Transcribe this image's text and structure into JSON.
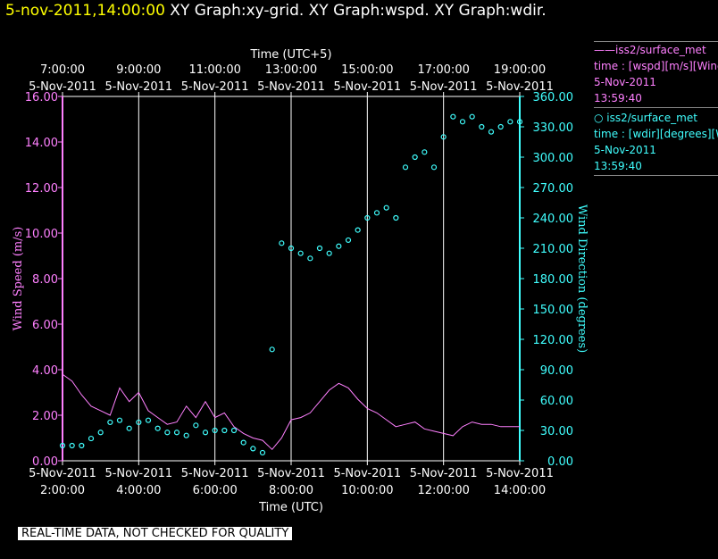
{
  "header": {
    "timestamp": "5-nov-2011,14:00:00",
    "graphs": "XY Graph:xy-grid.  XY Graph:wspd.  XY Graph:wdir."
  },
  "legend": [
    {
      "name": "——iss2/surface_met",
      "desc": "time : [wspd][m/s][Wind",
      "date": "5-Nov-2011",
      "time": "13:59:40",
      "color": "#ff80ff"
    },
    {
      "name": "○  iss2/surface_met",
      "desc": "time : [wdir][degrees][Wi",
      "date": "5-Nov-2011",
      "time": "13:59:40",
      "color": "#40ffff"
    }
  ],
  "footer": {
    "text": "REAL-TIME DATA, NOT CHECKED FOR QUALITY"
  },
  "chart_data": {
    "type": "line",
    "grid": "vertical lines only",
    "top_axis": {
      "title": "Time (UTC+5)",
      "ticks": [
        {
          "time": "7:00:00",
          "date": "5-Nov-2011"
        },
        {
          "time": "9:00:00",
          "date": "5-Nov-2011"
        },
        {
          "time": "11:00:00",
          "date": "5-Nov-2011"
        },
        {
          "time": "13:00:00",
          "date": "5-Nov-2011"
        },
        {
          "time": "15:00:00",
          "date": "5-Nov-2011"
        },
        {
          "time": "17:00:00",
          "date": "5-Nov-2011"
        },
        {
          "time": "19:00:00",
          "date": "5-Nov-2011"
        }
      ]
    },
    "bottom_axis": {
      "title": "Time (UTC)",
      "ticks": [
        {
          "time": "2:00:00",
          "date": "5-Nov-2011"
        },
        {
          "time": "4:00:00",
          "date": "5-Nov-2011"
        },
        {
          "time": "6:00:00",
          "date": "5-Nov-2011"
        },
        {
          "time": "8:00:00",
          "date": "5-Nov-2011"
        },
        {
          "time": "10:00:00",
          "date": "5-Nov-2011"
        },
        {
          "time": "12:00:00",
          "date": "5-Nov-2011"
        },
        {
          "time": "14:00:00",
          "date": "5-Nov-2011"
        }
      ],
      "x_range_hours_utc": [
        2,
        14
      ]
    },
    "left_axis": {
      "title": "Wind Speed (m/s)",
      "color": "#ff80ff",
      "ylim": [
        0,
        16
      ],
      "ticks": [
        "0.00",
        "2.00",
        "4.00",
        "6.00",
        "8.00",
        "10.00",
        "12.00",
        "14.00",
        "16.00"
      ]
    },
    "right_axis": {
      "title": "Wind Direction (degrees)",
      "color": "#40ffff",
      "ylim": [
        0,
        360
      ],
      "ticks": [
        "0.00",
        "30.00",
        "60.00",
        "90.00",
        "120.00",
        "150.00",
        "180.00",
        "210.00",
        "240.00",
        "270.00",
        "300.00",
        "330.00",
        "360.00"
      ]
    },
    "series": [
      {
        "name": "iss2/surface_met wspd",
        "axis": "left",
        "style": "line",
        "color": "#ff80ff",
        "x": [
          2.0,
          2.25,
          2.5,
          2.75,
          3.0,
          3.25,
          3.5,
          3.75,
          4.0,
          4.25,
          4.5,
          4.75,
          5.0,
          5.25,
          5.5,
          5.75,
          6.0,
          6.25,
          6.5,
          6.75,
          7.0,
          7.25,
          7.5,
          7.75,
          8.0,
          8.25,
          8.5,
          8.75,
          9.0,
          9.25,
          9.5,
          9.75,
          10.0,
          10.25,
          10.5,
          10.75,
          11.0,
          11.25,
          11.5,
          11.75,
          12.0,
          12.25,
          12.5,
          12.75,
          13.0,
          13.25,
          13.5,
          13.75,
          14.0
        ],
        "y": [
          3.8,
          3.5,
          2.9,
          2.4,
          2.2,
          2.0,
          3.2,
          2.6,
          3.0,
          2.2,
          1.9,
          1.6,
          1.7,
          2.4,
          1.9,
          2.6,
          1.9,
          2.1,
          1.5,
          1.2,
          1.0,
          0.9,
          0.5,
          1.0,
          1.8,
          1.9,
          2.1,
          2.6,
          3.1,
          3.4,
          3.2,
          2.7,
          2.3,
          2.1,
          1.8,
          1.5,
          1.6,
          1.7,
          1.4,
          1.3,
          1.2,
          1.1,
          1.5,
          1.7,
          1.6,
          1.6,
          1.5,
          1.5,
          1.5
        ]
      },
      {
        "name": "iss2/surface_met wdir",
        "axis": "right",
        "style": "circles",
        "color": "#40ffff",
        "x": [
          2.0,
          2.25,
          2.5,
          2.75,
          3.0,
          3.25,
          3.5,
          3.75,
          4.0,
          4.25,
          4.5,
          4.75,
          5.0,
          5.25,
          5.5,
          5.75,
          6.0,
          6.25,
          6.5,
          6.75,
          7.0,
          7.25,
          7.5,
          7.75,
          8.0,
          8.25,
          8.5,
          8.75,
          9.0,
          9.25,
          9.5,
          9.75,
          10.0,
          10.25,
          10.5,
          10.75,
          11.0,
          11.25,
          11.5,
          11.75,
          12.0,
          12.25,
          12.5,
          12.75,
          13.0,
          13.25,
          13.5,
          13.75,
          14.0
        ],
        "y": [
          15,
          15,
          15,
          22,
          28,
          38,
          40,
          32,
          38,
          40,
          32,
          28,
          28,
          25,
          35,
          28,
          30,
          30,
          30,
          18,
          12,
          8,
          110,
          215,
          210,
          205,
          200,
          210,
          205,
          212,
          218,
          228,
          240,
          245,
          250,
          240,
          290,
          300,
          305,
          290,
          320,
          340,
          335,
          340,
          330,
          325,
          330,
          335,
          335
        ]
      }
    ]
  }
}
